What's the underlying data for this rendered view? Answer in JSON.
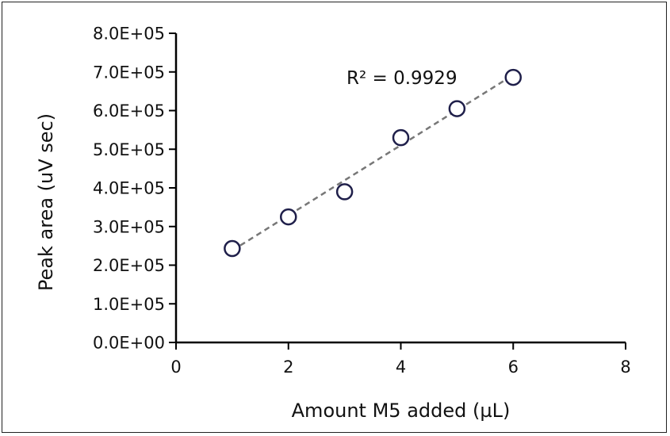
{
  "chart_data": {
    "type": "scatter",
    "title": "",
    "xlabel": "Amount M5 added (µL)",
    "ylabel": "Peak area (uV sec)",
    "xlim": [
      0,
      8
    ],
    "ylim": [
      0,
      800000
    ],
    "x_ticks": [
      0,
      2,
      4,
      6,
      8
    ],
    "x_tick_labels": [
      "0",
      "2",
      "4",
      "6",
      "8"
    ],
    "y_ticks": [
      0,
      100000,
      200000,
      300000,
      400000,
      500000,
      600000,
      700000,
      800000
    ],
    "y_tick_labels": [
      "0.0E+00",
      "1.0E+05",
      "2.0E+05",
      "3.0E+05",
      "4.0E+05",
      "5.0E+05",
      "6.0E+05",
      "7.0E+05",
      "8.0E+05"
    ],
    "grid": false,
    "series": [
      {
        "x": [
          1,
          2,
          3,
          4,
          5,
          6
        ],
        "y": [
          243000,
          325000,
          390000,
          530000,
          605000,
          686000
        ],
        "marker": "open-circle",
        "color": "#1f1f4a"
      }
    ],
    "trendline": {
      "type": "linear",
      "style": "dashed",
      "color": "#777777",
      "x_range": [
        1,
        6
      ],
      "y_range": [
        238000,
        692000
      ]
    },
    "annotation": "R² = 0.9929"
  }
}
